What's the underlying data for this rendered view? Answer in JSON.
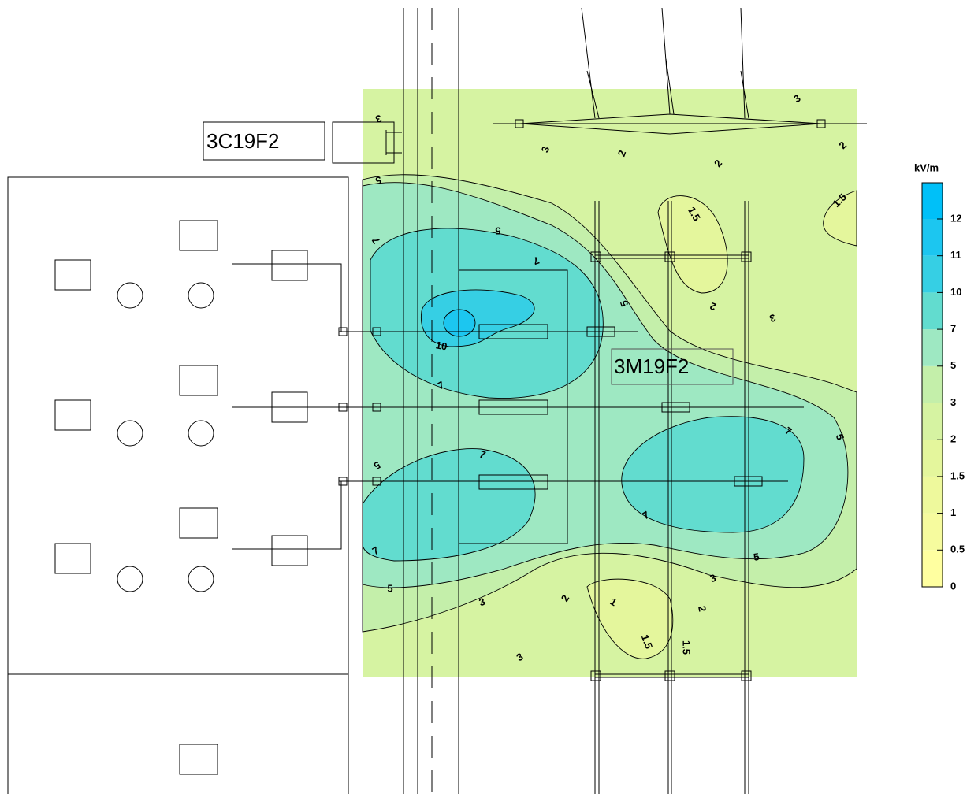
{
  "labels": {
    "feeder_left": "3C19F2",
    "feeder_center": "3M19F2"
  },
  "legend": {
    "title": "kV/m",
    "levels": [
      0,
      0.5,
      1,
      1.5,
      2,
      3,
      5,
      7,
      10,
      11,
      12
    ],
    "colors": [
      "#ffffa0",
      "#f6fb9e",
      "#eef99c",
      "#e4f69c",
      "#d6f3a2",
      "#c4efaa",
      "#9ee8c2",
      "#62dccf",
      "#36cfe4",
      "#1cc6f0",
      "#00c0f8"
    ]
  },
  "contour_labels": [
    "3",
    "5",
    "5",
    "7",
    "7",
    "5",
    "10",
    "7",
    "5",
    "7",
    "7",
    "5",
    "3",
    "7",
    "5",
    "7",
    "5",
    "3",
    "2",
    "2",
    "2",
    "3",
    "1.5",
    "1.5",
    "2",
    "3",
    "3",
    "2",
    "1",
    "2",
    "1.5",
    "1.5",
    "3"
  ]
}
